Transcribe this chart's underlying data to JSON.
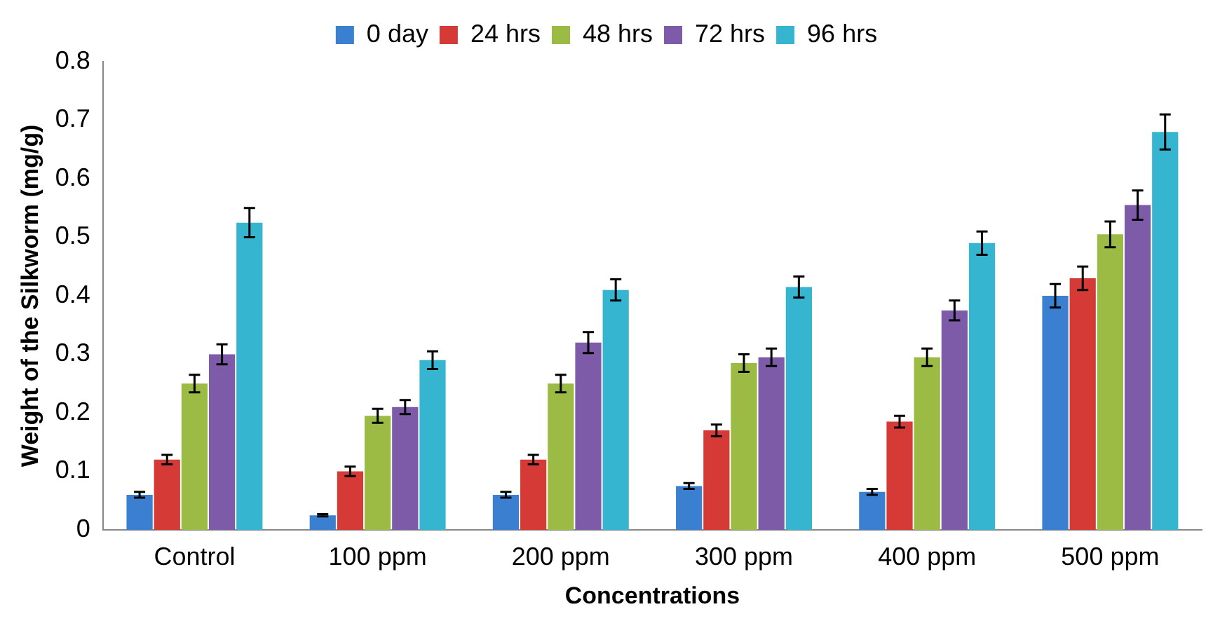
{
  "chart_data": {
    "type": "bar",
    "xlabel": "Concentrations",
    "ylabel": "Weight of the Silkworm (mg/g)",
    "categories": [
      "Control",
      "100 ppm",
      "200 ppm",
      "300 ppm",
      "400 ppm",
      "500 ppm"
    ],
    "series": [
      {
        "name": "0 day",
        "color": "#3a7fd0",
        "values": [
          0.06,
          0.025,
          0.06,
          0.075,
          0.065,
          0.4
        ],
        "errors": [
          0.005,
          0.002,
          0.005,
          0.005,
          0.005,
          0.02
        ]
      },
      {
        "name": "24 hrs",
        "color": "#d63a36",
        "values": [
          0.12,
          0.1,
          0.12,
          0.17,
          0.185,
          0.43
        ],
        "errors": [
          0.008,
          0.008,
          0.008,
          0.01,
          0.01,
          0.02
        ]
      },
      {
        "name": "48 hrs",
        "color": "#9bbb45",
        "values": [
          0.25,
          0.195,
          0.25,
          0.285,
          0.295,
          0.505
        ],
        "errors": [
          0.015,
          0.012,
          0.015,
          0.015,
          0.015,
          0.022
        ]
      },
      {
        "name": "72 hrs",
        "color": "#7e5ba8",
        "values": [
          0.3,
          0.21,
          0.32,
          0.295,
          0.375,
          0.555
        ],
        "errors": [
          0.017,
          0.012,
          0.018,
          0.015,
          0.017,
          0.025
        ]
      },
      {
        "name": "96 hrs",
        "color": "#35b5d0",
        "values": [
          0.525,
          0.29,
          0.41,
          0.415,
          0.49,
          0.68
        ],
        "errors": [
          0.025,
          0.015,
          0.018,
          0.018,
          0.02,
          0.03
        ]
      }
    ],
    "ylim": [
      0,
      0.8
    ],
    "yticks": [
      0,
      0.1,
      0.2,
      0.3,
      0.4,
      0.5,
      0.6,
      0.7,
      0.8
    ],
    "grid": false,
    "legend": "top"
  }
}
